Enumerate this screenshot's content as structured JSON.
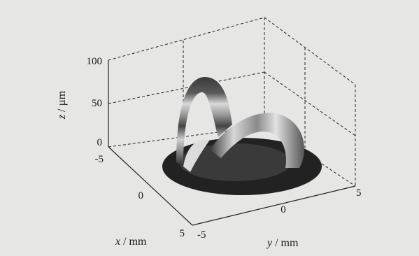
{
  "chart_data": {
    "type": "surface3d",
    "title": "",
    "x_axis": {
      "label_var": "x",
      "label_unit": " / mm",
      "ticks": [
        "-5",
        "0",
        "5"
      ],
      "range": [
        -5,
        5
      ]
    },
    "y_axis": {
      "label_var": "y",
      "label_unit": " / mm",
      "ticks": [
        "-5",
        "0",
        "5"
      ],
      "range": [
        -5,
        5
      ]
    },
    "z_axis": {
      "label_var": "z",
      "label_unit": " / µm",
      "ticks": [
        "0",
        "50",
        "100"
      ],
      "range": [
        0,
        100
      ]
    },
    "surface": {
      "shape": "annular ring of outer radius ~3.5 mm, inner radius ~2 mm, with a saddle-shaped ribbon rising from it",
      "base_disk_radius": 3.5,
      "peak_height": 90,
      "grid": "off (dashed box outlines only)"
    },
    "colors": {
      "background": "#e6e6e4",
      "surface_dark": "#2b2b2b",
      "surface_light": "#d8d8d8"
    }
  }
}
